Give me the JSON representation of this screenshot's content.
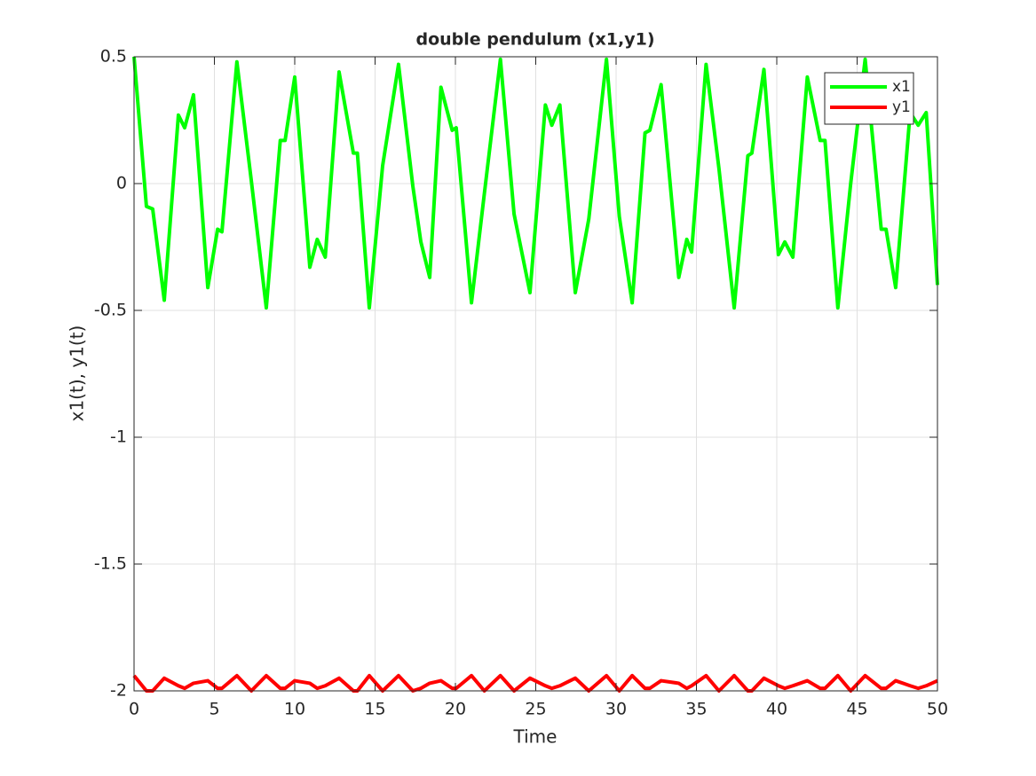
{
  "chart_data": {
    "type": "line",
    "title": "double pendulum (x1,y1)",
    "xlabel": "Time",
    "ylabel": "x1(t), y1(t)",
    "x": [
      0,
      0.77,
      1.16,
      1.88,
      2.76,
      3.15,
      3.7,
      4.59,
      5.2,
      5.47,
      6.4,
      7.3,
      8.23,
      9.1,
      9.4,
      10,
      10.94,
      11.4,
      11.9,
      12.76,
      13.65,
      13.9,
      14.64,
      15.47,
      16.46,
      17.35,
      17.85,
      18.4,
      19.1,
      19.8,
      20.05,
      21,
      21.8,
      22.8,
      23.65,
      24.64,
      25.6,
      26,
      26.5,
      27.46,
      28.3,
      29.4,
      30.2,
      31,
      31.8,
      32.1,
      32.8,
      33.9,
      34.4,
      34.7,
      35.6,
      36.4,
      37.35,
      38.2,
      38.45,
      39.2,
      40.1,
      40.5,
      41,
      41.9,
      42.7,
      43,
      43.8,
      44.6,
      45.5,
      46.5,
      46.8,
      47.4,
      48.3,
      48.8,
      49.3,
      50
    ],
    "series": [
      {
        "name": "x1",
        "color": "#00ff00",
        "values": [
          0.5,
          -0.09,
          -0.1,
          -0.46,
          0.27,
          0.22,
          0.35,
          -0.41,
          -0.18,
          -0.19,
          0.48,
          0.01,
          -0.49,
          0.17,
          0.17,
          0.42,
          -0.33,
          -0.22,
          -0.29,
          0.44,
          0.12,
          0.12,
          -0.49,
          0.07,
          0.47,
          -0.01,
          -0.23,
          -0.37,
          0.38,
          0.21,
          0.22,
          -0.47,
          -0.04,
          0.49,
          -0.12,
          -0.43,
          0.31,
          0.23,
          0.31,
          -0.43,
          -0.14,
          0.49,
          -0.13,
          -0.47,
          0.2,
          0.21,
          0.39,
          -0.37,
          -0.22,
          -0.27,
          0.47,
          0.06,
          -0.49,
          0.11,
          0.12,
          0.45,
          -0.28,
          -0.23,
          -0.29,
          0.42,
          0.17,
          0.17,
          -0.49,
          0.0,
          0.49,
          -0.18,
          -0.18,
          -0.41,
          0.28,
          0.23,
          0.28,
          -0.4
        ]
      },
      {
        "name": "y1",
        "color": "#ff0000",
        "values": [
          -1.94,
          -2,
          -2,
          -1.95,
          -1.98,
          -1.99,
          -1.97,
          -1.96,
          -1.99,
          -1.99,
          -1.94,
          -2,
          -1.94,
          -1.99,
          -1.99,
          -1.96,
          -1.97,
          -1.99,
          -1.98,
          -1.95,
          -2,
          -2,
          -1.94,
          -2,
          -1.94,
          -2,
          -1.99,
          -1.97,
          -1.96,
          -1.99,
          -1.99,
          -1.94,
          -2,
          -1.94,
          -2,
          -1.95,
          -1.98,
          -1.99,
          -1.98,
          -1.95,
          -2,
          -1.94,
          -2,
          -1.94,
          -1.99,
          -1.99,
          -1.96,
          -1.97,
          -1.99,
          -1.98,
          -1.94,
          -2,
          -1.94,
          -2,
          -2,
          -1.95,
          -1.98,
          -1.99,
          -1.98,
          -1.96,
          -1.99,
          -1.99,
          -1.94,
          -2,
          -1.94,
          -1.99,
          -1.99,
          -1.96,
          -1.98,
          -1.99,
          -1.98,
          -1.96
        ]
      }
    ],
    "xlim": [
      0,
      50
    ],
    "xticks": [
      0,
      5,
      10,
      15,
      20,
      25,
      30,
      35,
      40,
      45,
      50
    ],
    "ylim": [
      -2,
      0.5
    ],
    "yticks": [
      -2,
      -1.5,
      -1,
      -0.5,
      0,
      0.5
    ],
    "grid": true,
    "legend": "northeast"
  }
}
